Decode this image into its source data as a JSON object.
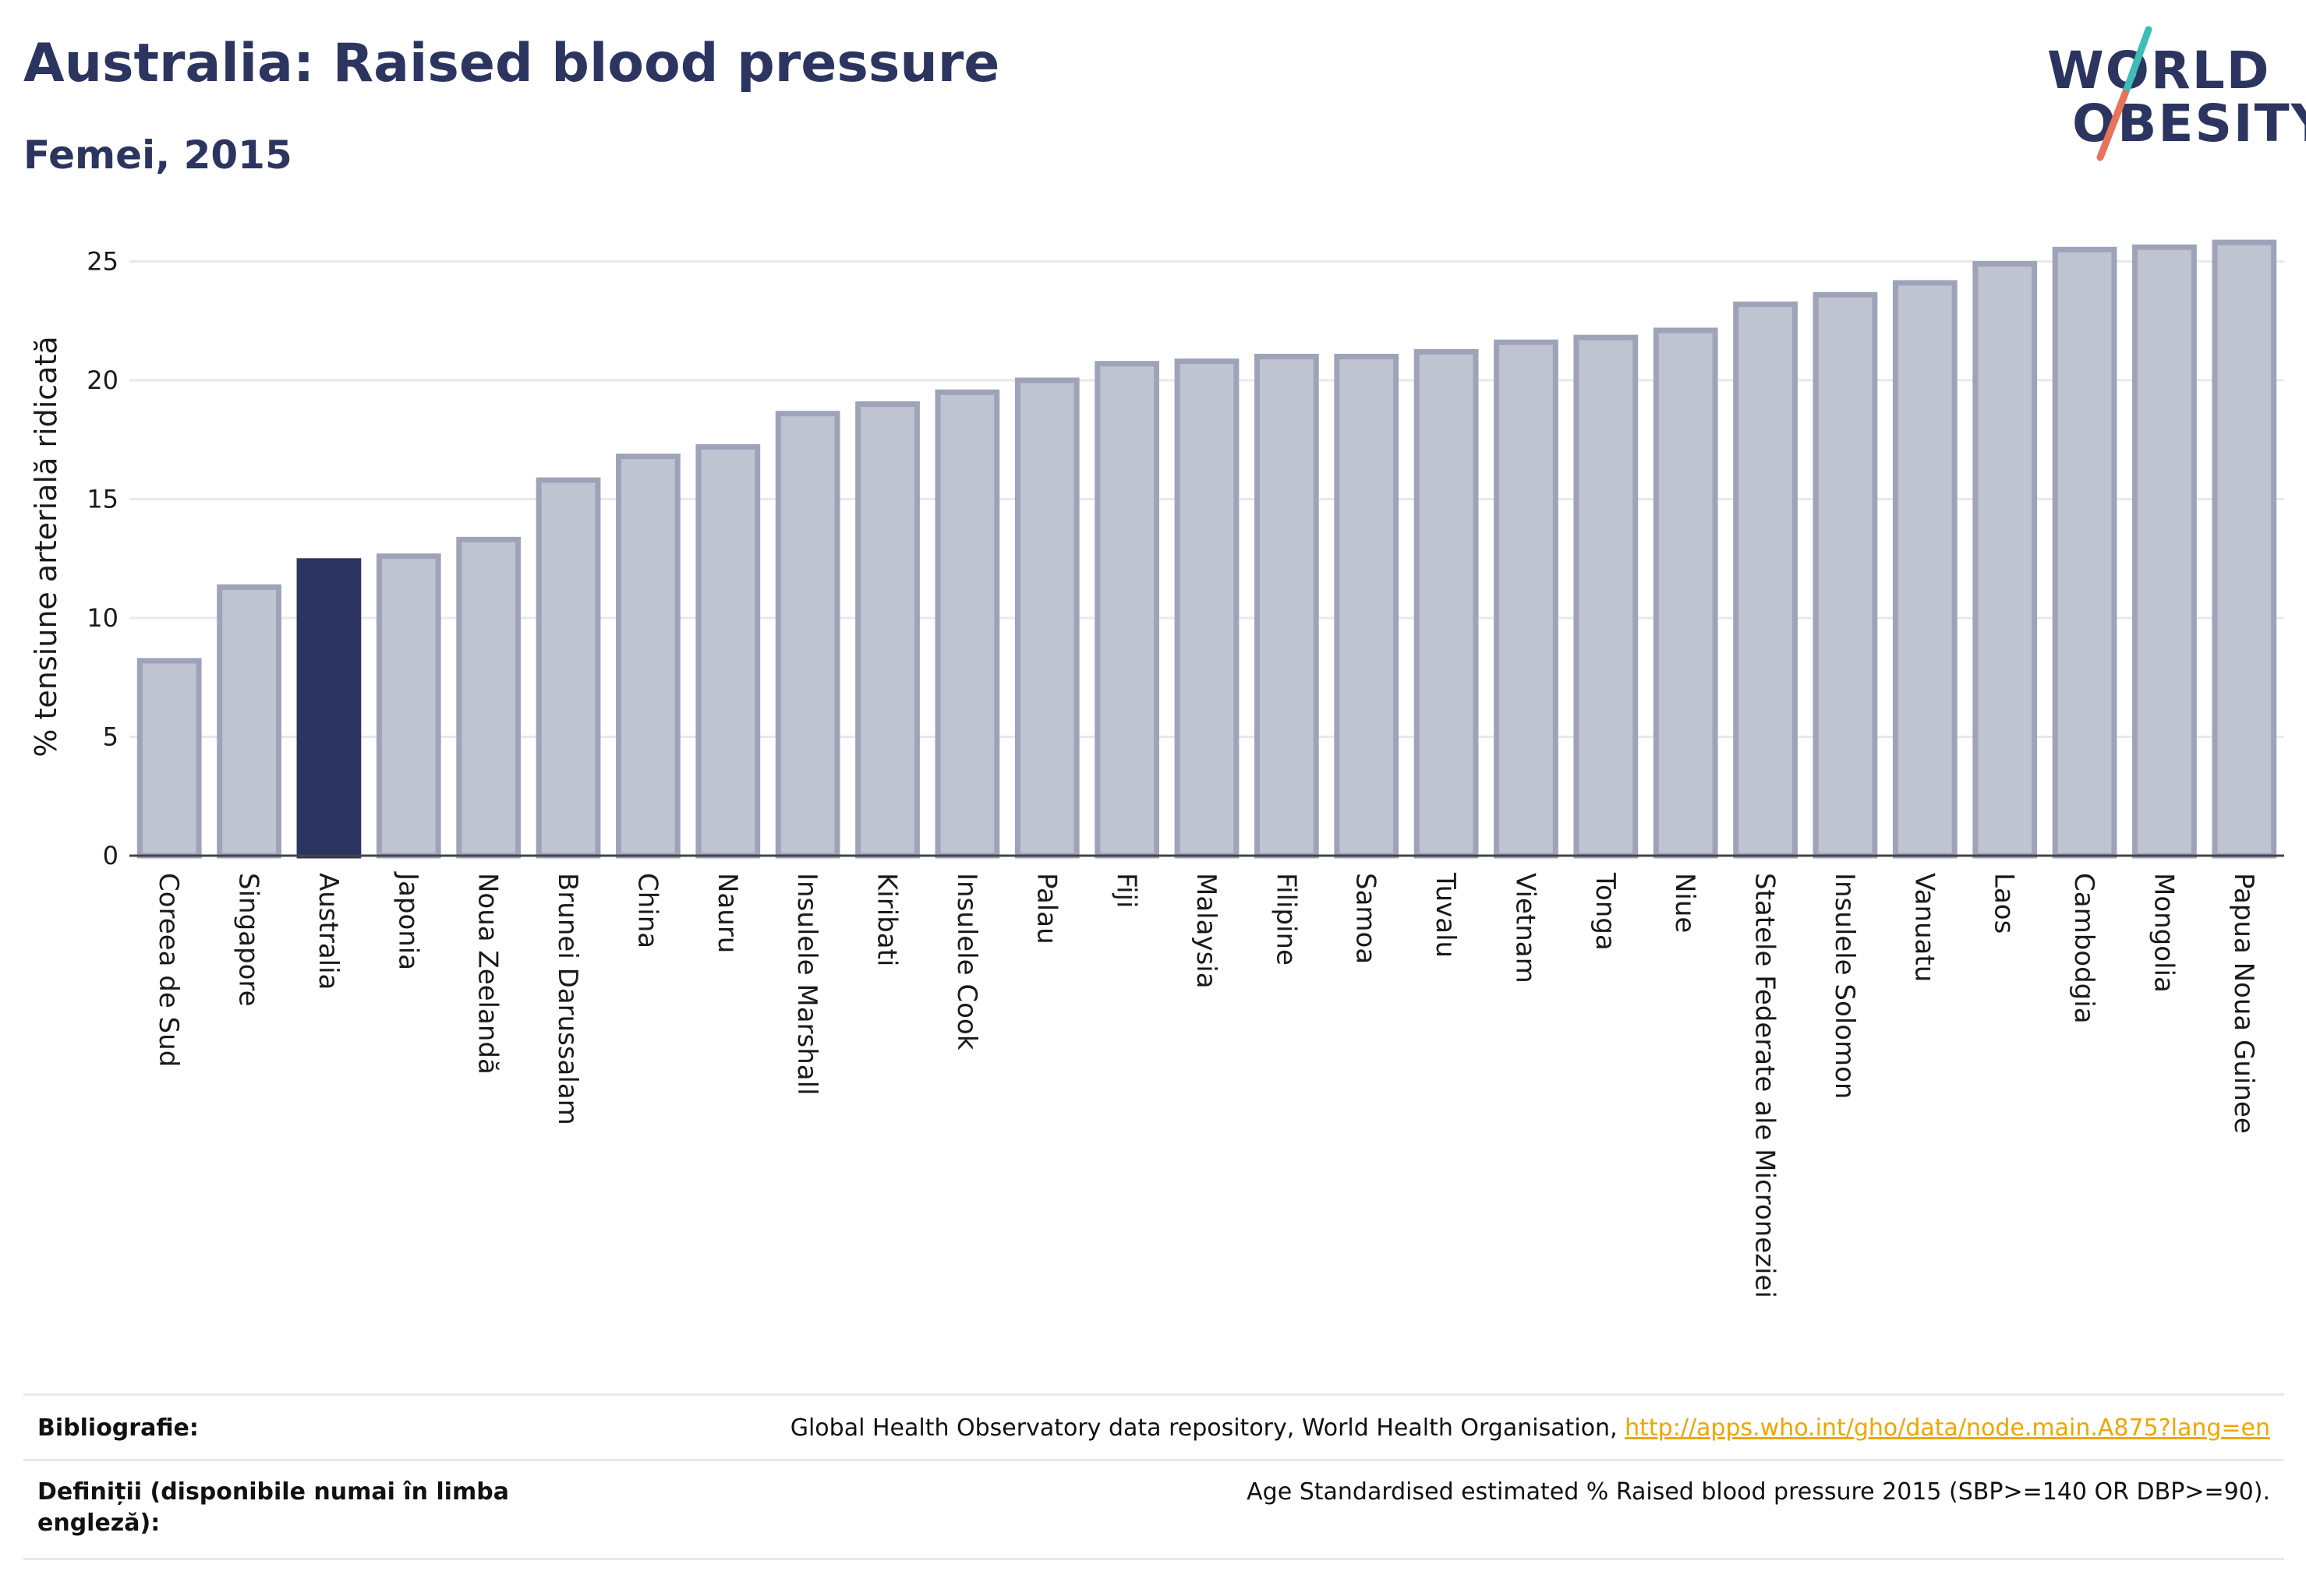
{
  "header": {
    "title": "Australia: Raised blood pressure",
    "subtitle": "Femei, 2015"
  },
  "logo": {
    "line1": "WORLD",
    "line2": "OBESITY",
    "accent_colors": [
      "#3dbdb6",
      "#e8735a"
    ]
  },
  "colors": {
    "highlight": "#2c3560",
    "bar_fill": "#c0c3d0",
    "bar_stroke": "#9ea3b9",
    "grid": "#e8e8ee"
  },
  "chart_data": {
    "type": "bar",
    "title": "Australia: Raised blood pressure",
    "subtitle": "Femei, 2015",
    "xlabel": "",
    "ylabel": "% tensiune arterială ridicată",
    "ylim": [
      0,
      26
    ],
    "yticks": [
      0,
      5,
      10,
      15,
      20,
      25
    ],
    "grid": true,
    "highlight": "Australia",
    "categories": [
      "Coreea de Sud",
      "Singapore",
      "Australia",
      "Japonia",
      "Noua Zeelandă",
      "Brunei Darussalam",
      "China",
      "Nauru",
      "Insulele Marshall",
      "Kiribati",
      "Insulele Cook",
      "Palau",
      "Fiji",
      "Malaysia",
      "Filipine",
      "Samoa",
      "Tuvalu",
      "Vietnam",
      "Tonga",
      "Niue",
      "Statele Federate ale Microneziei",
      "Insulele Solomon",
      "Vanuatu",
      "Laos",
      "Cambodgia",
      "Mongolia",
      "Papua Noua Guinee"
    ],
    "values": [
      8.2,
      11.3,
      12.4,
      12.6,
      13.3,
      15.8,
      16.8,
      17.2,
      18.6,
      19.0,
      19.5,
      20.0,
      20.7,
      20.8,
      21.0,
      21.0,
      21.2,
      21.6,
      21.8,
      22.1,
      23.2,
      23.6,
      24.1,
      24.9,
      25.5,
      25.6,
      25.8
    ]
  },
  "footer": {
    "bibliography_label": "Bibliografie:",
    "bibliography_text": "Global Health Observatory data repository, World Health Organisation, ",
    "bibliography_link": "http://apps.who.int/gho/data/node.main.A875?lang=en",
    "definitions_label": "Definiții (disponibile numai în limba engleză):",
    "definitions_text": "Age Standardised estimated % Raised blood pressure 2015 (SBP>=140 OR DBP>=90)."
  }
}
